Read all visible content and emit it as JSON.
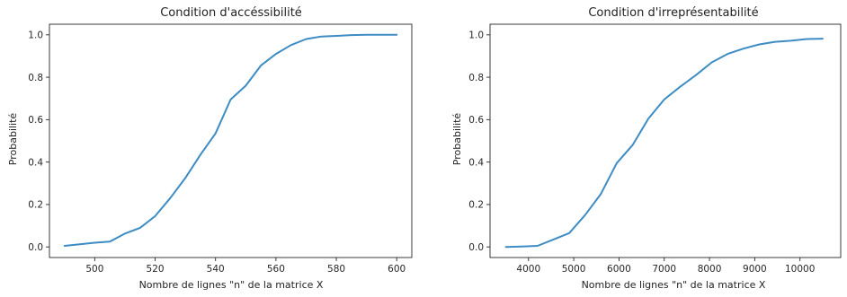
{
  "chart_data": [
    {
      "type": "line",
      "title": "Condition d'accéssibilité",
      "xlabel": "Nombre de lignes \"n\" de la matrice X",
      "ylabel": "Probabilité",
      "xlim": [
        485,
        605
      ],
      "ylim": [
        -0.05,
        1.05
      ],
      "xticks": [
        500,
        520,
        540,
        560,
        580,
        600
      ],
      "yticks": [
        0.0,
        0.2,
        0.4,
        0.6,
        0.8,
        1.0
      ],
      "grid": false,
      "series": [
        {
          "color": "#3d8cc4",
          "x": [
            490,
            495,
            500,
            505,
            510,
            515,
            520,
            525,
            530,
            535,
            540,
            545,
            550,
            555,
            560,
            565,
            570,
            575,
            580,
            585,
            590,
            595,
            600
          ],
          "y": [
            0.005,
            0.012,
            0.02,
            0.025,
            0.063,
            0.09,
            0.145,
            0.23,
            0.325,
            0.435,
            0.535,
            0.695,
            0.76,
            0.855,
            0.91,
            0.952,
            0.98,
            0.992,
            0.995,
            0.999,
            1.0,
            1.0,
            1.0
          ]
        }
      ]
    },
    {
      "type": "line",
      "title": "Condition d'irreprésentabilité",
      "xlabel": "Nombre de lignes \"n\" de la matrice X",
      "ylabel": "Probabilité",
      "xlim": [
        3150,
        10900
      ],
      "ylim": [
        -0.05,
        1.05
      ],
      "xticks": [
        4000,
        5000,
        6000,
        7000,
        8000,
        9000,
        10000
      ],
      "yticks": [
        0.0,
        0.2,
        0.4,
        0.6,
        0.8,
        1.0
      ],
      "grid": false,
      "series": [
        {
          "color": "#3d8cc4",
          "x": [
            3500,
            3850,
            4200,
            4550,
            4900,
            5250,
            5600,
            5950,
            6300,
            6650,
            7000,
            7350,
            7700,
            8050,
            8400,
            8750,
            9100,
            9450,
            9800,
            10150,
            10500
          ],
          "y": [
            0.0,
            0.002,
            0.005,
            0.035,
            0.065,
            0.15,
            0.25,
            0.395,
            0.48,
            0.605,
            0.695,
            0.755,
            0.81,
            0.87,
            0.91,
            0.935,
            0.955,
            0.967,
            0.972,
            0.98,
            0.982
          ]
        }
      ]
    }
  ]
}
